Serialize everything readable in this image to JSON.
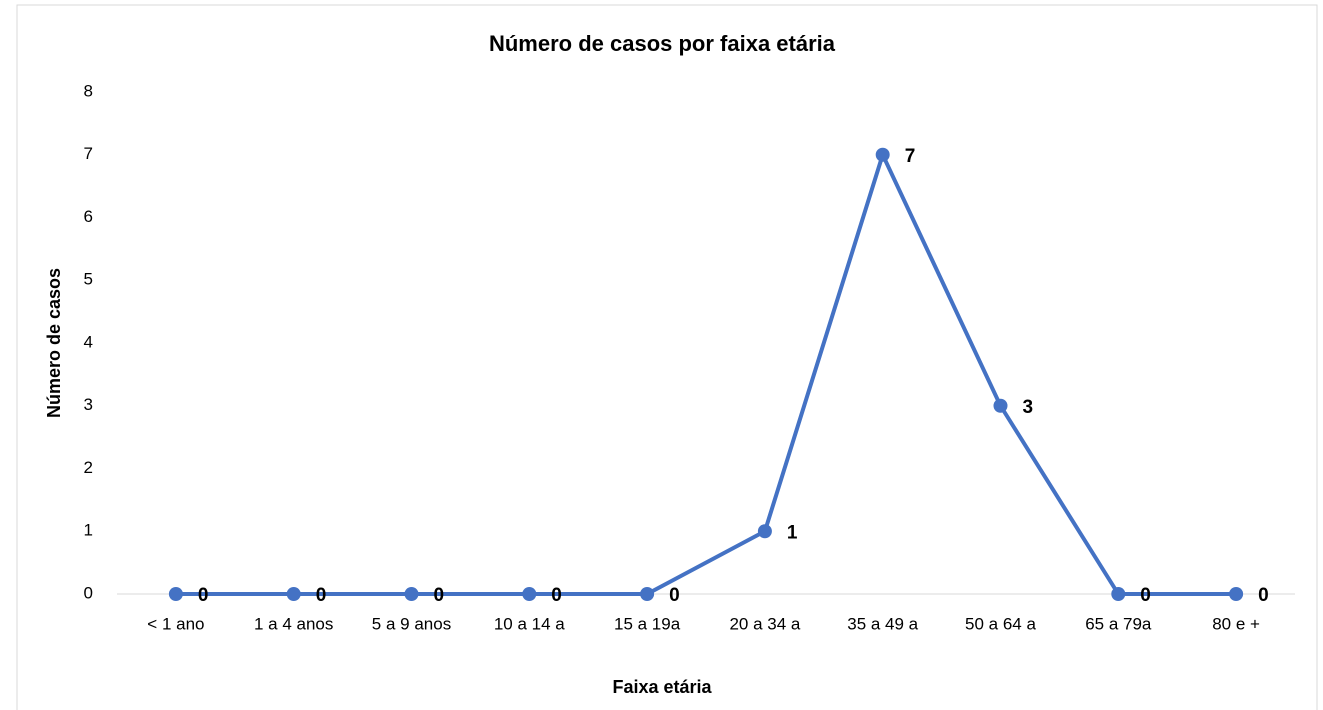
{
  "chart_data": {
    "type": "line",
    "title": "Número de casos por faixa etária",
    "xlabel": "Faixa etária",
    "ylabel": "Número de casos",
    "categories": [
      "< 1 ano",
      "1 a 4 anos",
      "5 a 9 anos",
      "10 a 14 a",
      "15 a 19a",
      "20 a 34 a",
      "35 a 49 a",
      "50 a 64 a",
      "65 a 79a",
      "80 e +"
    ],
    "series": [
      {
        "name": "Número de casos",
        "color": "#4472c4",
        "values": [
          0,
          0,
          0,
          0,
          0,
          1,
          7,
          3,
          0,
          0
        ]
      }
    ],
    "ylim": [
      0,
      8
    ],
    "yticks": [
      0,
      1,
      2,
      3,
      4,
      5,
      6,
      7,
      8
    ],
    "grid": false
  }
}
